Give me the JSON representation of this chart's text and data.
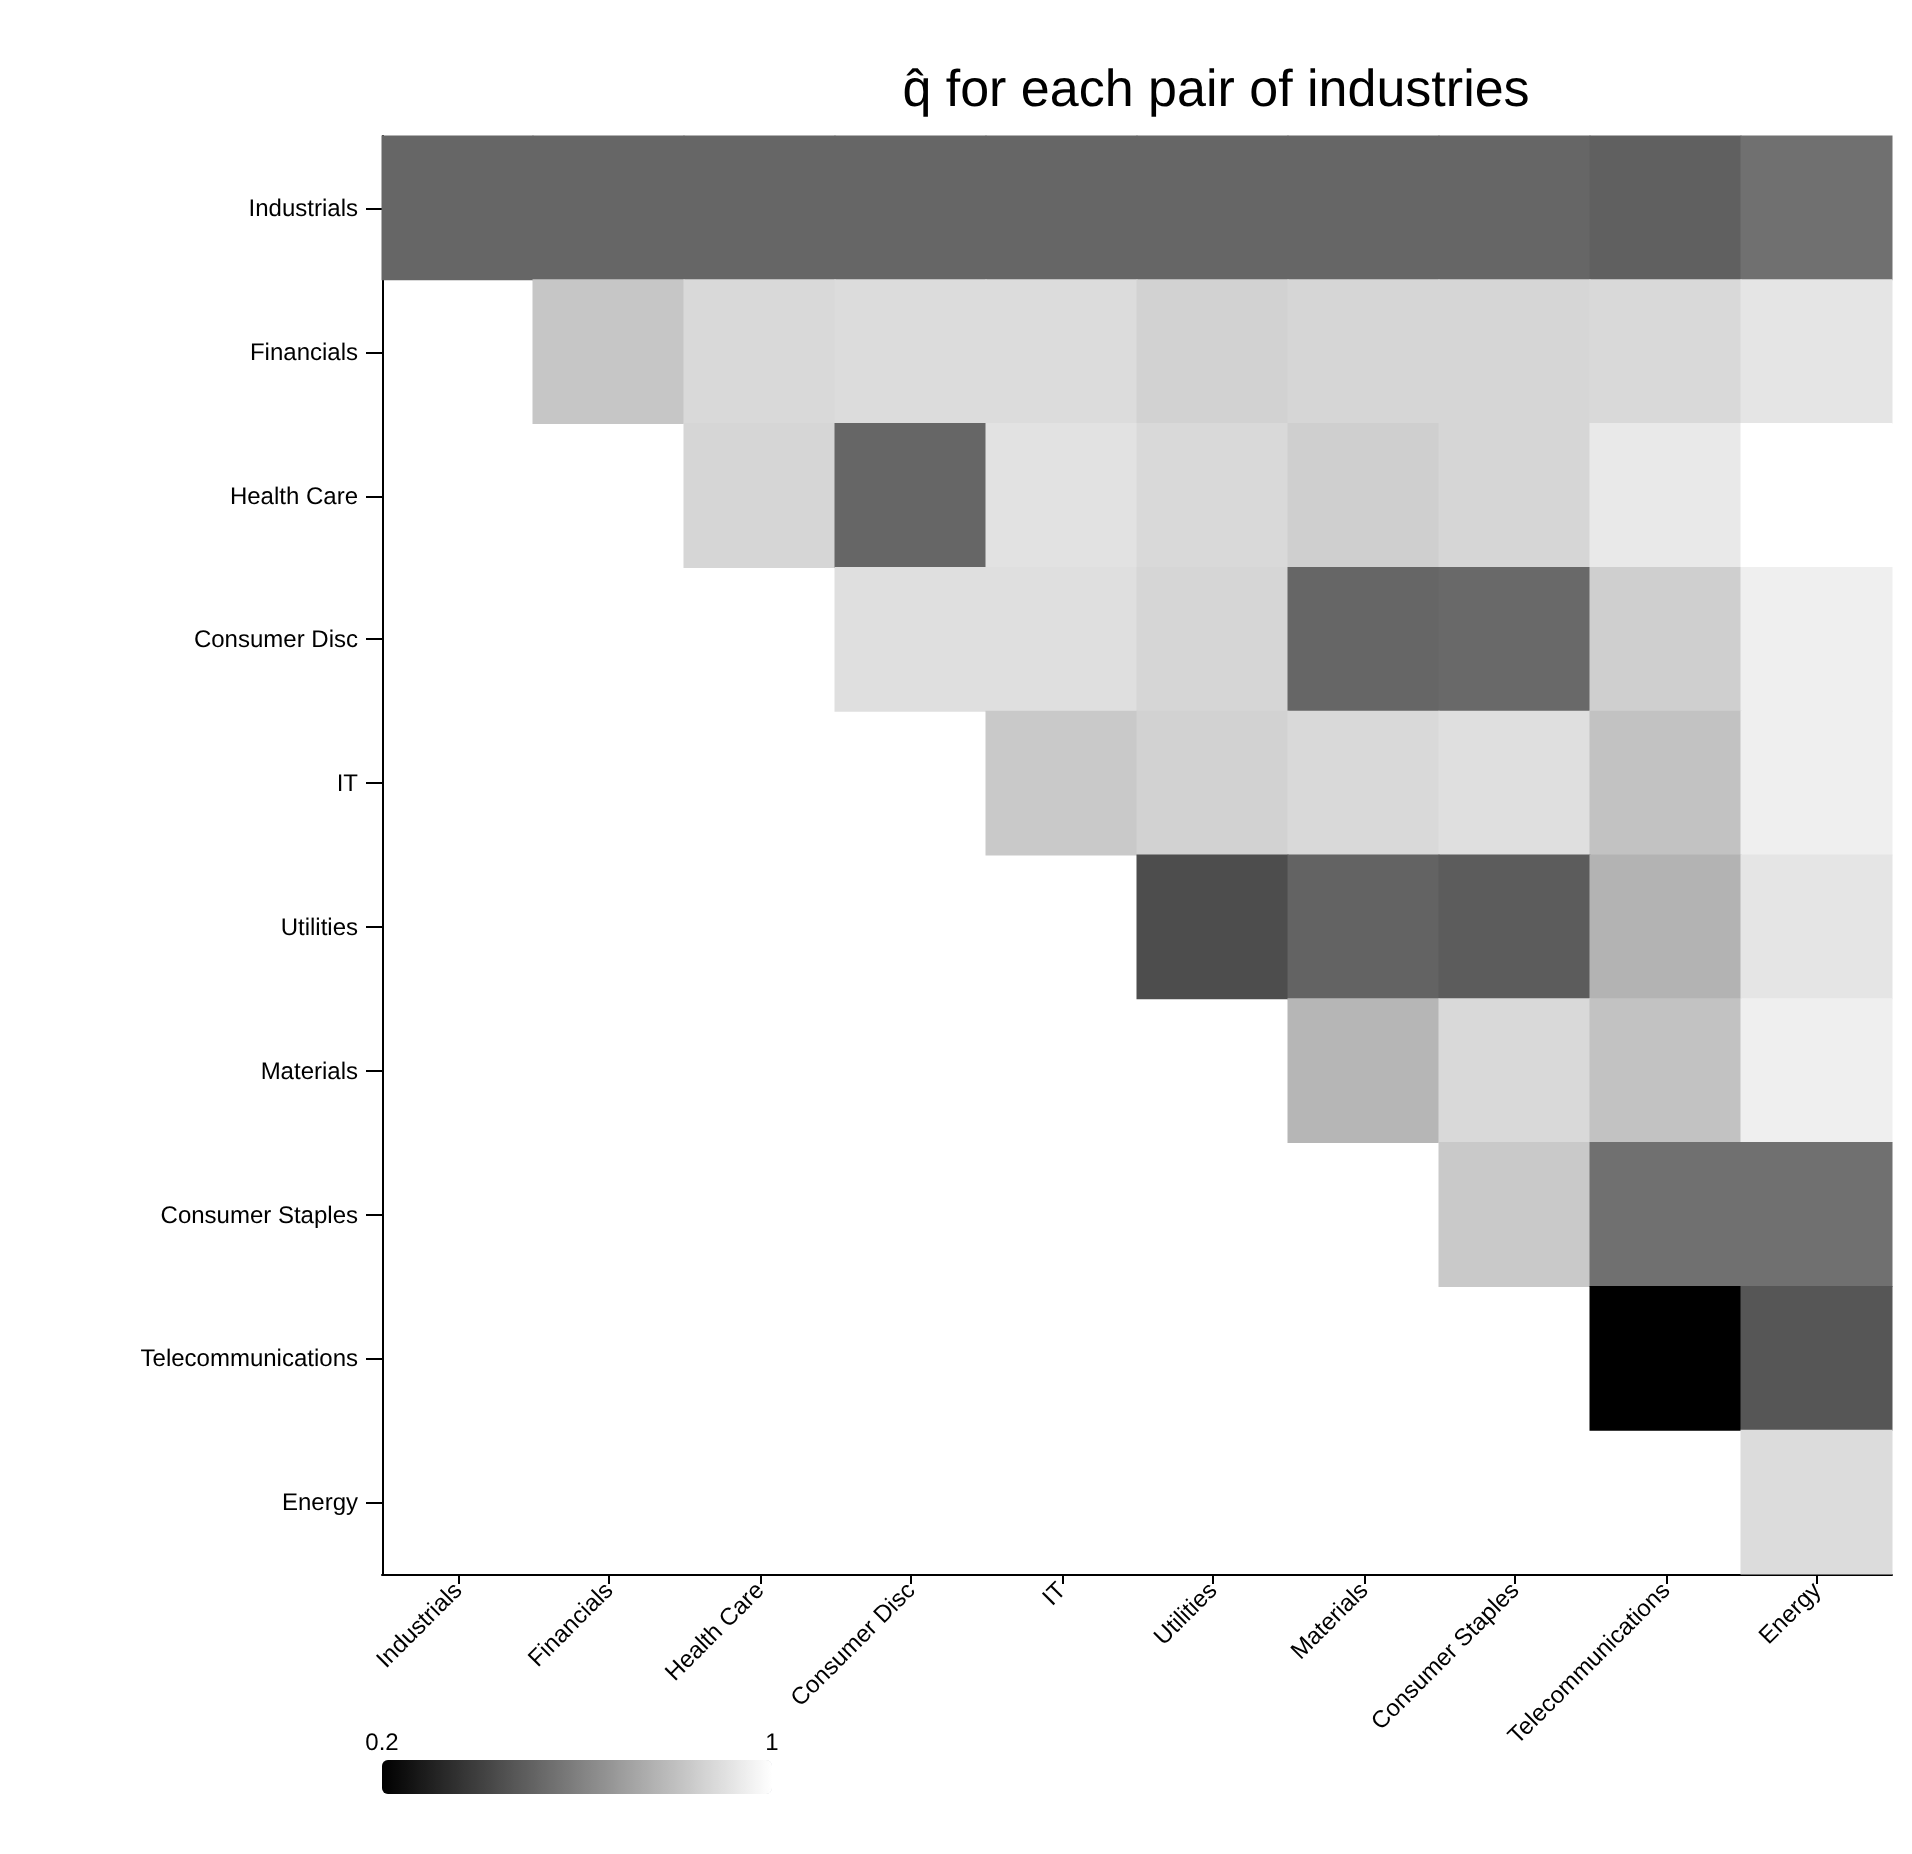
{
  "chart_data": {
    "type": "heatmap",
    "title": "q̂ for each pair of industries",
    "categories": [
      "Industrials",
      "Financials",
      "Health Care",
      "Consumer Disc",
      "IT",
      "Utilities",
      "Materials",
      "Consumer Staples",
      "Telecommunications",
      "Energy"
    ],
    "y_categories": [
      "Industrials",
      "Financials",
      "Health Care",
      "Consumer Disc",
      "IT",
      "Utilities",
      "Materials",
      "Consumer Staples",
      "Telecommunications",
      "Energy"
    ],
    "cells": [
      [
        0.52,
        0.52,
        0.52,
        0.52,
        0.52,
        0.52,
        0.52,
        0.52,
        0.5,
        0.55
      ],
      [
        null,
        0.82,
        0.88,
        0.89,
        0.89,
        0.86,
        0.87,
        0.87,
        0.88,
        0.92
      ],
      [
        null,
        null,
        0.87,
        0.52,
        0.91,
        0.88,
        0.85,
        0.87,
        0.93,
        1.0
      ],
      [
        null,
        null,
        null,
        0.9,
        0.9,
        0.87,
        0.52,
        0.53,
        0.85,
        0.95
      ],
      [
        null,
        null,
        null,
        null,
        0.83,
        0.86,
        0.88,
        0.9,
        0.81,
        0.95
      ],
      [
        null,
        null,
        null,
        null,
        null,
        0.44,
        0.51,
        0.49,
        0.76,
        0.92
      ],
      [
        null,
        null,
        null,
        null,
        null,
        null,
        0.77,
        0.88,
        0.81,
        0.95
      ],
      [
        null,
        null,
        null,
        null,
        null,
        null,
        null,
        0.83,
        0.55,
        0.55
      ],
      [
        null,
        null,
        null,
        null,
        null,
        null,
        null,
        null,
        0.2,
        0.47
      ],
      [
        null,
        null,
        null,
        null,
        null,
        null,
        null,
        null,
        null,
        0.89
      ]
    ],
    "clim": [
      0.2,
      1
    ],
    "cticks": [
      0.2,
      1
    ]
  }
}
